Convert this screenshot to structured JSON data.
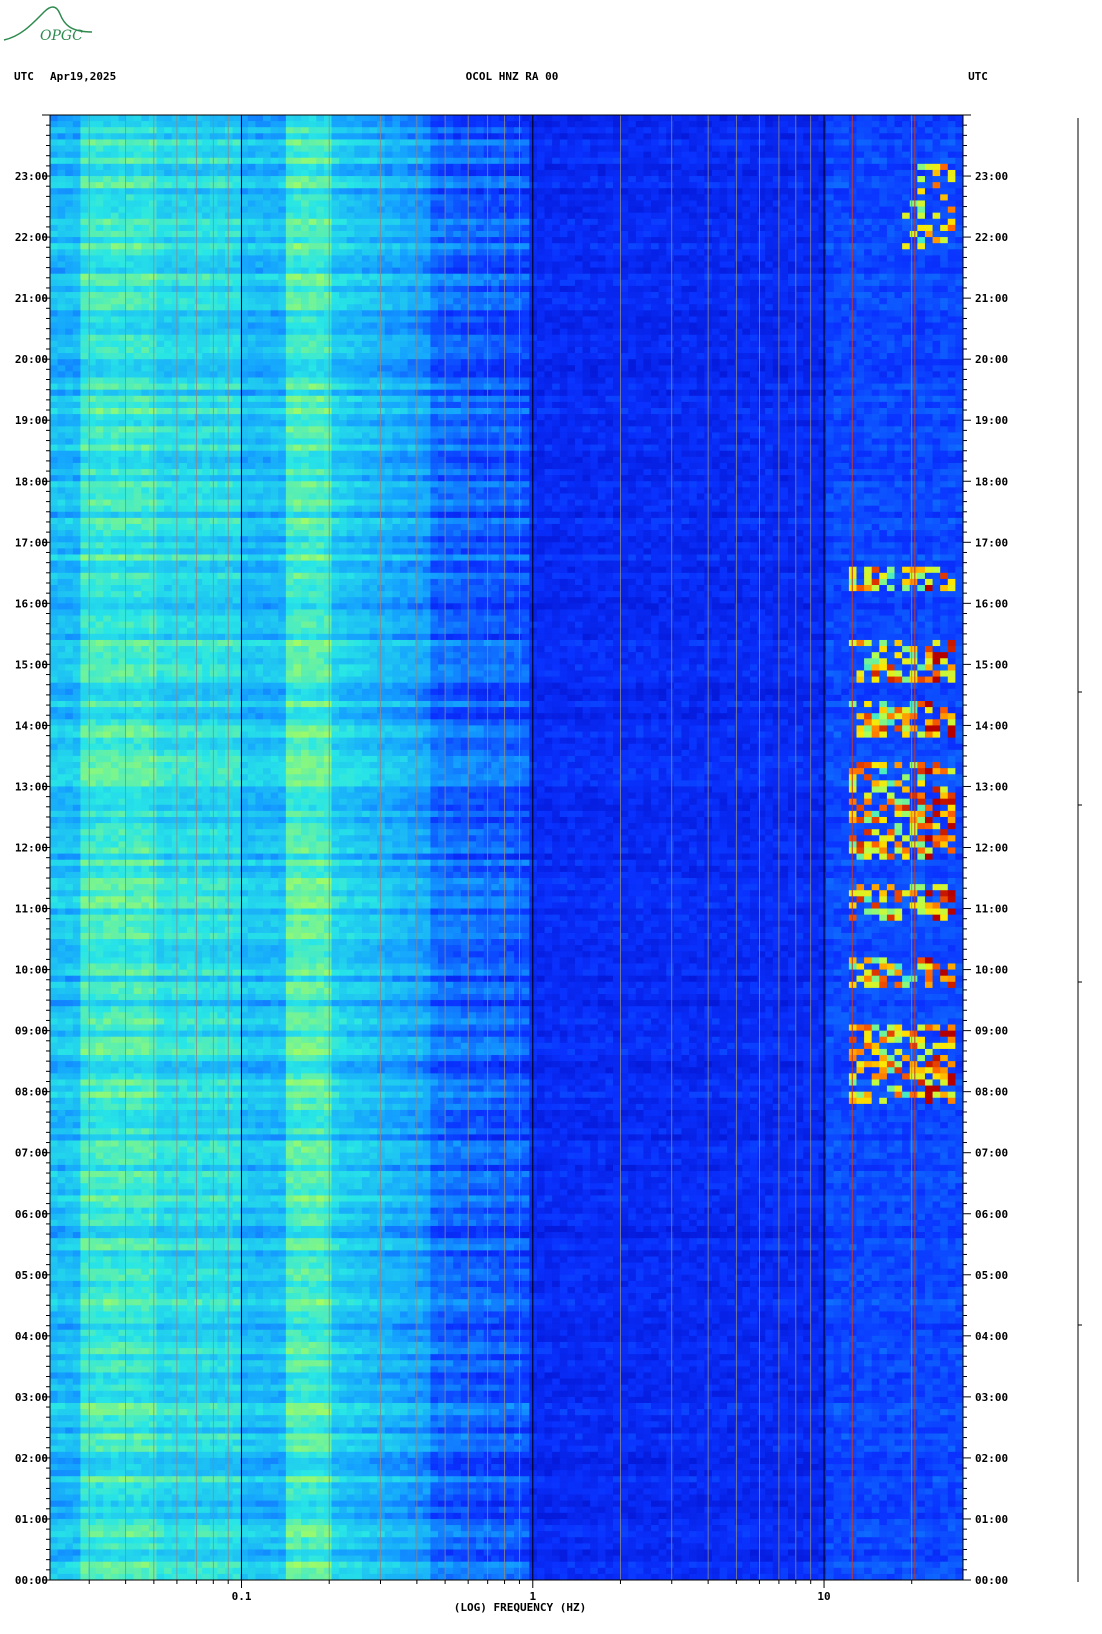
{
  "logo": {
    "text": "OPGC",
    "color": "#2d8a4e"
  },
  "header": {
    "left_tz": "UTC",
    "date": "Apr19,2025",
    "station": "OCOL HNZ RA 00",
    "right_tz": "UTC"
  },
  "chart_data": {
    "type": "heatmap",
    "title": "OCOL HNZ RA 00",
    "xlabel": "(LOG) FREQUENCY (HZ)",
    "xscale": "log",
    "xlim": [
      0.022,
      30
    ],
    "x_tick_labels": [
      {
        "value": 0.1,
        "label": "0.1"
      },
      {
        "value": 1,
        "label": "1"
      },
      {
        "value": 10,
        "label": "10"
      }
    ],
    "ylabel": "UTC",
    "ylim_hours": [
      0,
      24
    ],
    "y_tick_labels": [
      "00:00",
      "01:00",
      "02:00",
      "03:00",
      "04:00",
      "05:00",
      "06:00",
      "07:00",
      "08:00",
      "09:00",
      "10:00",
      "11:00",
      "12:00",
      "13:00",
      "14:00",
      "15:00",
      "16:00",
      "17:00",
      "18:00",
      "19:00",
      "20:00",
      "21:00",
      "22:00",
      "23:00"
    ],
    "colormap": [
      "#0000b4",
      "#0a32ff",
      "#14a0ff",
      "#28e6e6",
      "#b4ff50",
      "#ffe600",
      "#ff6400",
      "#b40000"
    ],
    "grid": true
  }
}
